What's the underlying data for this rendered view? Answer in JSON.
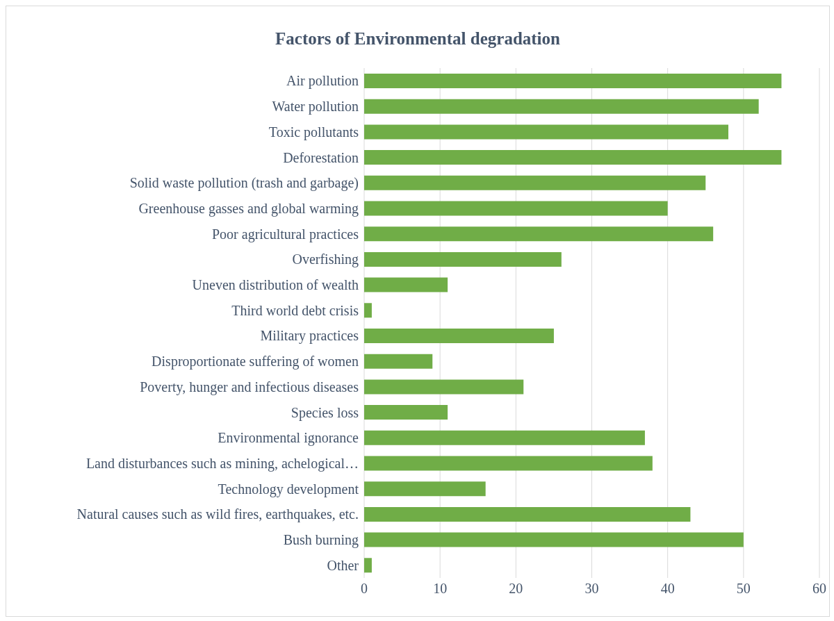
{
  "chart_data": {
    "type": "bar",
    "orientation": "horizontal",
    "title": "Factors of Environmental degradation",
    "categories": [
      "Air pollution",
      "Water pollution",
      "Toxic pollutants",
      "Deforestation",
      "Solid waste pollution (trash and garbage)",
      "Greenhouse gasses and global warming",
      "Poor agricultural practices",
      "Overfishing",
      "Uneven distribution of wealth",
      "Third world debt crisis",
      "Military practices",
      "Disproportionate suffering of women",
      "Poverty, hunger and infectious diseases",
      "Species loss",
      "Environmental ignorance",
      "Land disturbances such as mining, achelogical…",
      "Technology development",
      "Natural causes such as wild fires, earthquakes, etc.",
      "Bush burning",
      "Other"
    ],
    "values": [
      55,
      52,
      48,
      55,
      45,
      40,
      46,
      26,
      11,
      1,
      25,
      9,
      21,
      11,
      37,
      38,
      16,
      43,
      50,
      1
    ],
    "color": "#70ad47",
    "xlim": [
      0,
      60
    ],
    "xticks": [
      0,
      10,
      20,
      30,
      40,
      50,
      60
    ],
    "grid": "x"
  }
}
